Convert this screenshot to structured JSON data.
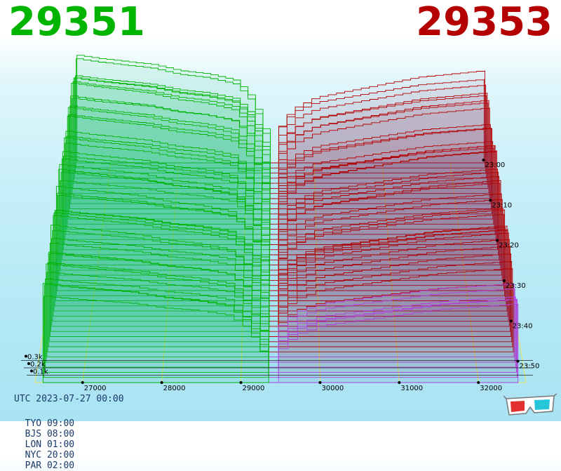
{
  "header": {
    "bid_price": "29351",
    "ask_price": "29353",
    "bid_color": "#00b400",
    "ask_color": "#b40000"
  },
  "footer": {
    "utc": "UTC 2023-07-27 00:00",
    "zones": [
      {
        "label": "TYO 09:00"
      },
      {
        "label": "BJS 08:00"
      },
      {
        "label": "LON 01:00"
      },
      {
        "label": "NYC 20:00"
      },
      {
        "label": "PAR 02:00"
      }
    ]
  },
  "icons": {
    "glasses": "3d-glasses-icon"
  },
  "chart_data": {
    "type": "area",
    "x_ticks": [
      27000,
      28000,
      29000,
      30000,
      31000,
      32000
    ],
    "x_tick_labels": [
      "27000",
      "28000",
      "29000",
      "30000",
      "31000",
      "32000"
    ],
    "y_ticks": [
      0.1,
      0.2,
      0.3
    ],
    "y_tick_labels": [
      "0.1k",
      "0.2k",
      "0.3k"
    ],
    "time_labels": [
      "23:00",
      "23:10",
      "23:20",
      "23:30",
      "23:40",
      "23:50"
    ],
    "mid_price": 29352,
    "xlim": [
      26400,
      32600
    ],
    "series": [
      {
        "color": "#00b400",
        "x": [
          26500,
          26800,
          27200,
          27600,
          28000,
          28400,
          28800,
          29000,
          29100,
          29200,
          29300,
          29351
        ],
        "values": [
          0.35,
          0.34,
          0.33,
          0.32,
          0.3,
          0.29,
          0.27,
          0.23,
          0.19,
          0.14,
          0.07,
          0.0
        ]
      },
      {
        "color": "#b40000",
        "x": [
          29353,
          29400,
          29500,
          29700,
          30000,
          30500,
          31000,
          31500,
          32000,
          32500
        ],
        "values": [
          0.0,
          0.08,
          0.14,
          0.18,
          0.21,
          0.23,
          0.25,
          0.27,
          0.28,
          0.29
        ]
      }
    ]
  }
}
